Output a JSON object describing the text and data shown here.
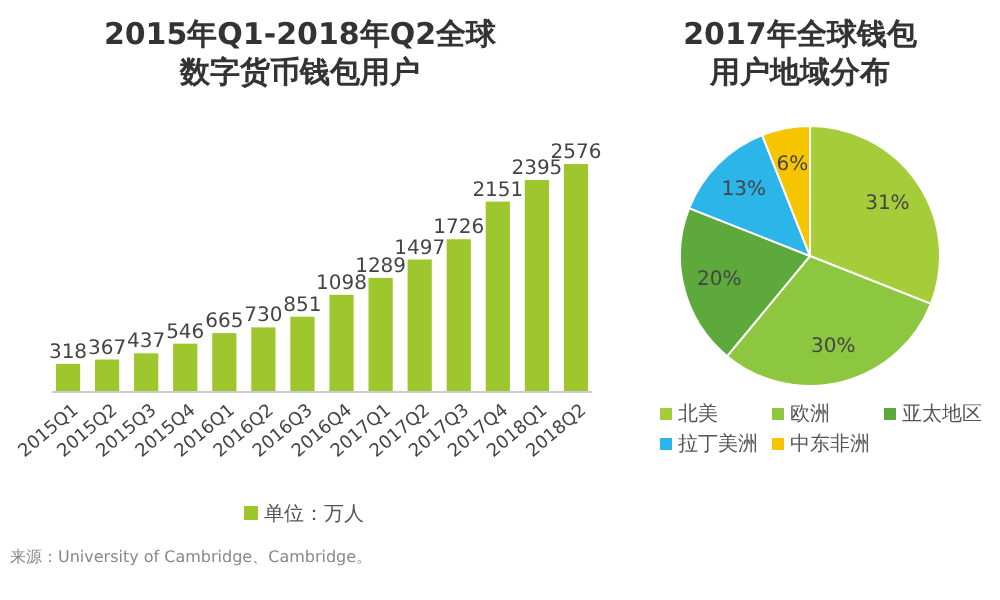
{
  "chart_data": [
    {
      "type": "bar",
      "title": "2015年Q1-2018年Q2全球数字货币钱包用户",
      "categories": [
        "2015Q1",
        "2015Q2",
        "2015Q3",
        "2015Q4",
        "2016Q1",
        "2016Q2",
        "2016Q3",
        "2016Q4",
        "2017Q1",
        "2017Q2",
        "2017Q3",
        "2017Q4",
        "2018Q1",
        "2018Q2"
      ],
      "series": [
        {
          "name": "单位：万人",
          "color": "#9dc72d",
          "values": [
            318,
            367,
            437,
            546,
            665,
            730,
            851,
            1098,
            1289,
            1497,
            1726,
            2151,
            2395,
            2576
          ]
        }
      ],
      "data_labels": true,
      "legend": "bottom",
      "annotations": [
        "来源：University of Cambridge、Cambridge。"
      ]
    },
    {
      "type": "pie",
      "title": "2017年全球钱包用户地域分布",
      "categories": [
        "北美",
        "欧洲",
        "亚太地区",
        "拉丁美洲",
        "中东非洲"
      ],
      "values": [
        31,
        30,
        20,
        13,
        6
      ],
      "value_labels": [
        "31%",
        "30%",
        "20%",
        "13%",
        "6%"
      ],
      "colors": [
        "#a5cd39",
        "#8dc63f",
        "#5ea93b",
        "#2cb5e9",
        "#f6c500"
      ],
      "legend": "bottom"
    }
  ]
}
